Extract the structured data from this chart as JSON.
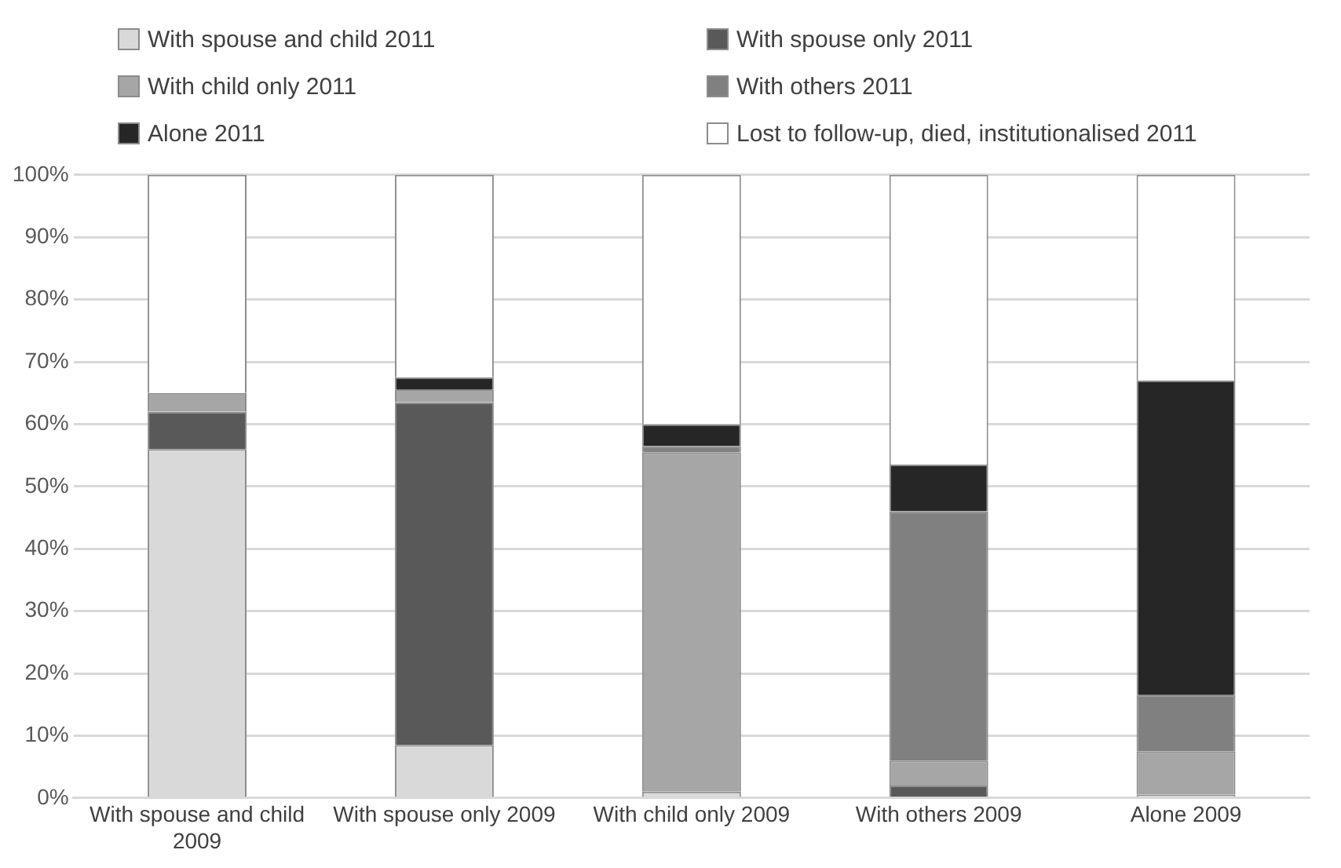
{
  "chart_data": {
    "type": "bar",
    "stacked": true,
    "legend": "top",
    "grid": "y",
    "categories": [
      "With spouse and child 2009",
      "With spouse only 2009",
      "With child only 2009",
      "With others 2009",
      "Alone 2009"
    ],
    "ylim": [
      0,
      100
    ],
    "yticks": [
      {
        "value": 0,
        "label": "0%"
      },
      {
        "value": 10,
        "label": "10%"
      },
      {
        "value": 20,
        "label": "20%"
      },
      {
        "value": 30,
        "label": "30%"
      },
      {
        "value": 40,
        "label": "40%"
      },
      {
        "value": 50,
        "label": "50%"
      },
      {
        "value": 60,
        "label": "60%"
      },
      {
        "value": 70,
        "label": "70%"
      },
      {
        "value": 80,
        "label": "80%"
      },
      {
        "value": 90,
        "label": "90%"
      },
      {
        "value": 100,
        "label": "100%"
      }
    ],
    "series": [
      {
        "name": "With spouse and child 2011",
        "color": "#d9d9d9",
        "values": [
          56,
          8.5,
          1,
          0,
          0.5
        ]
      },
      {
        "name": "With spouse only 2011",
        "color": "#595959",
        "values": [
          6,
          55,
          0,
          2,
          0
        ]
      },
      {
        "name": "With child only 2011",
        "color": "#a6a6a6",
        "values": [
          3,
          2,
          54.5,
          4,
          7
        ]
      },
      {
        "name": "With others 2011",
        "color": "#808080",
        "values": [
          0,
          0,
          1,
          40,
          9
        ]
      },
      {
        "name": "Alone 2011",
        "color": "#262626",
        "values": [
          0,
          2,
          3.5,
          7.5,
          50.5
        ]
      },
      {
        "name": "Lost to follow-up, died, institutionalised 2011",
        "color": "#ffffff",
        "values": [
          35,
          32.5,
          40,
          46.5,
          33
        ]
      }
    ]
  }
}
